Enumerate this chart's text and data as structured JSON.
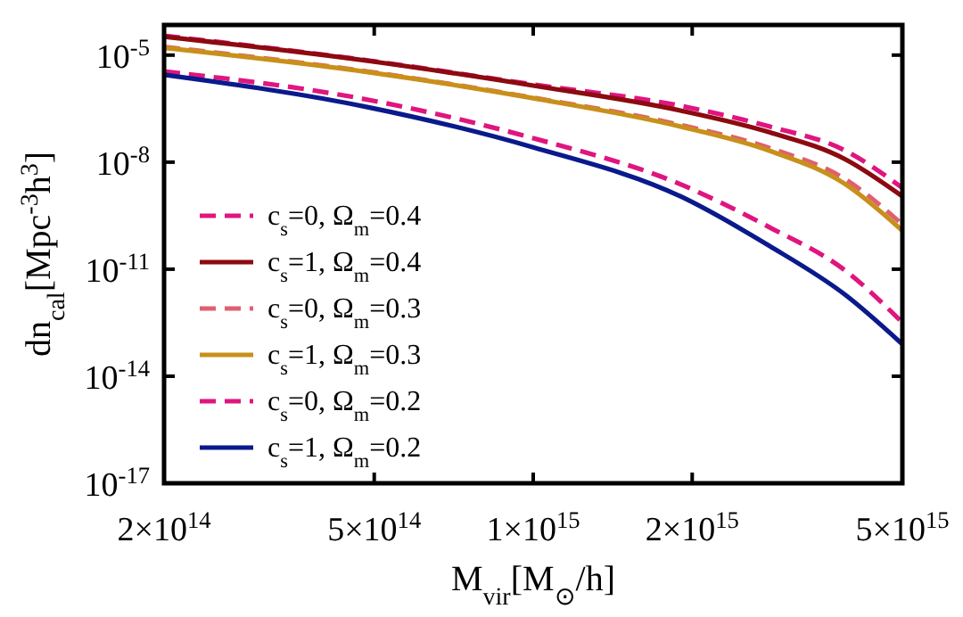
{
  "chart_data": {
    "type": "line",
    "xlabel": "M$_{vir}$[M$_{⊙}$/h]",
    "ylabel": "dn$_{cal}$[Mpc$^{-3}$h$^{3}$]",
    "log": "xy",
    "grid": false,
    "legend": "bottom left",
    "xlim": [
      200000000000000.0,
      5000000000000000.0
    ],
    "ylim": [
      1e-17,
      7e-05
    ],
    "xticks": [
      {
        "value": 200000000000000.0,
        "label": "2×10$^{14}$"
      },
      {
        "value": 500000000000000.0,
        "label": "5×10$^{14}$"
      },
      {
        "value": 1000000000000000.0,
        "label": "1×10$^{15}$"
      },
      {
        "value": 2000000000000000.0,
        "label": "2×10$^{15}$"
      },
      {
        "value": 5000000000000000.0,
        "label": "5×10$^{15}$"
      }
    ],
    "yticks": [
      {
        "value": 1e-17,
        "label": "10$^{-17}$"
      },
      {
        "value": 1e-14,
        "label": "10$^{-14}$"
      },
      {
        "value": 1e-11,
        "label": "10$^{-11}$"
      },
      {
        "value": 1e-08,
        "label": "10$^{-8}$"
      },
      {
        "value": 1e-05,
        "label": "10$^{-5}$"
      }
    ],
    "x": [
      200000000000000.0,
      490000000000000.0,
      1000000000000000.0,
      1900000000000000.0,
      2800000000000000.0,
      3900000000000000.0,
      5000000000000000.0
    ],
    "series": [
      {
        "name": "c$_{s}$=0, Ω$_{m}$=0.4",
        "color": "#e0157f",
        "line_style": "dashed",
        "values": [
          3.5e-05,
          7e-06,
          1.5e-06,
          3.8e-07,
          1e-07,
          2.1e-08,
          1.9e-09
        ]
      },
      {
        "name": "c$_{s}$=1, Ω$_{m}$=0.4",
        "color": "#8c0a10",
        "line_style": "solid",
        "values": [
          3.3e-05,
          6.8e-06,
          1.4e-06,
          2.8e-07,
          6.9e-08,
          1.2e-08,
          1.1e-09
        ]
      },
      {
        "name": "c$_{s}$=0, Ω$_{m}$=0.3",
        "color": "#e06070",
        "line_style": "dashed",
        "values": [
          1.7e-05,
          3.4e-06,
          6.4e-07,
          1.1e-07,
          2.5e-08,
          3.3e-09,
          1.8e-10
        ]
      },
      {
        "name": "c$_{s}$=1, Ω$_{m}$=0.3",
        "color": "#c8901a",
        "line_style": "solid",
        "values": [
          1.6e-05,
          3.3e-06,
          6.2e-07,
          1e-07,
          2.1e-08,
          2.4e-09,
          1.2e-10
        ]
      },
      {
        "name": "c$_{s}$=0, Ω$_{m}$=0.2",
        "color": "#e0157f",
        "line_style": "dashed",
        "values": [
          3.5e-06,
          5.5e-07,
          4.7e-08,
          2.4e-09,
          1.5e-10,
          9.1e-12,
          3.2e-13
        ]
      },
      {
        "name": "c$_{s}$=1, Ω$_{m}$=0.2",
        "color": "#0a1a8c",
        "line_style": "solid",
        "values": [
          2.8e-06,
          3.4e-07,
          2.6e-08,
          1.1e-09,
          4.5e-11,
          1.9e-12,
          7.9e-14
        ]
      }
    ]
  }
}
